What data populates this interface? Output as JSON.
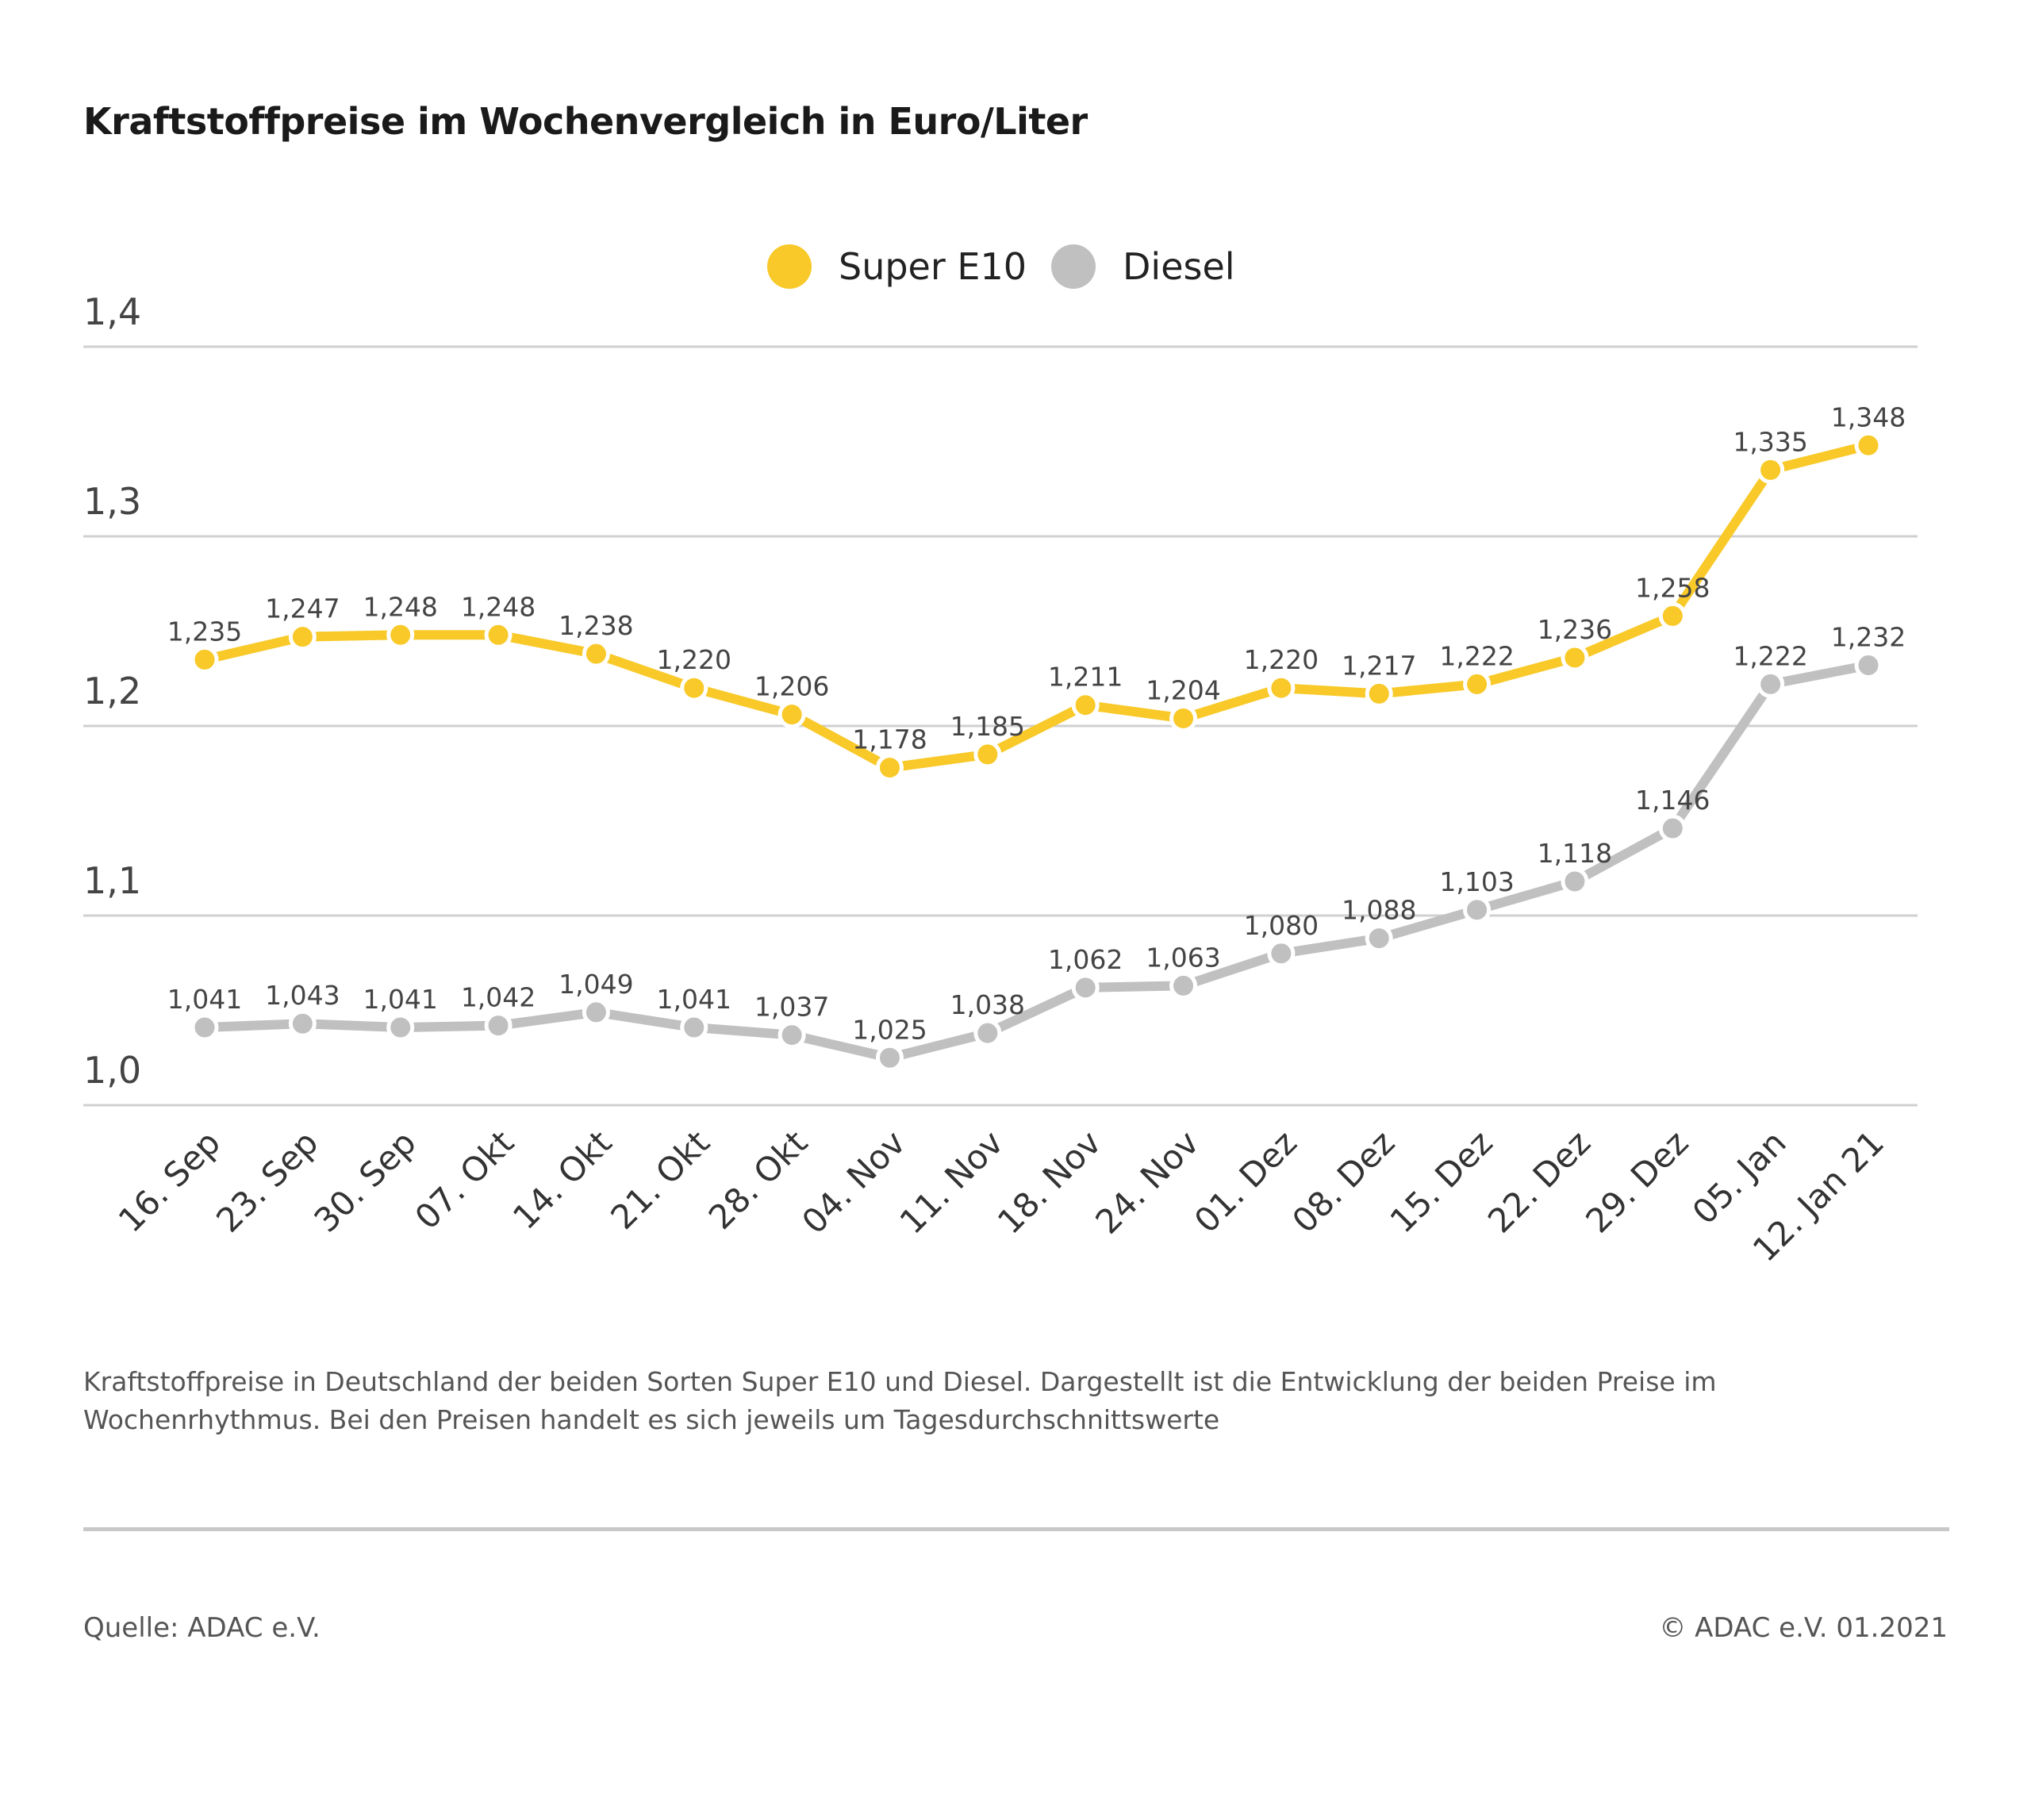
{
  "chart_data": {
    "type": "line",
    "title": "Kraftstoffpreise im Wochenvergleich in Euro/Liter",
    "categories": [
      "16. Sep",
      "23. Sep",
      "30. Sep",
      "07. Okt",
      "14. Okt",
      "21. Okt",
      "28. Okt",
      "04. Nov",
      "11. Nov",
      "18. Nov",
      "24. Nov",
      "01. Dez",
      "08. Dez",
      "15. Dez",
      "22. Dez",
      "29. Dez",
      "05. Jan",
      "12. Jan 21"
    ],
    "series": [
      {
        "name": "Super E10",
        "color": "#f8c928",
        "values": [
          1.235,
          1.247,
          1.248,
          1.248,
          1.238,
          1.22,
          1.206,
          1.178,
          1.185,
          1.211,
          1.204,
          1.22,
          1.217,
          1.222,
          1.236,
          1.258,
          1.335,
          1.348
        ],
        "labels": [
          "1,235",
          "1,247",
          "1,248",
          "1,248",
          "1,238",
          "1,220",
          "1,206",
          "1,178",
          "1,185",
          "1,211",
          "1,204",
          "1,220",
          "1,217",
          "1,222",
          "1,236",
          "1,258",
          "1,335",
          "1,348"
        ]
      },
      {
        "name": "Diesel",
        "color": "#c0c0c0",
        "values": [
          1.041,
          1.043,
          1.041,
          1.042,
          1.049,
          1.041,
          1.037,
          1.025,
          1.038,
          1.062,
          1.063,
          1.08,
          1.088,
          1.103,
          1.118,
          1.146,
          1.222,
          1.232
        ],
        "labels": [
          "1,041",
          "1,043",
          "1,041",
          "1,042",
          "1,049",
          "1,041",
          "1,037",
          "1,025",
          "1,038",
          "1,062",
          "1,063",
          "1,080",
          "1,088",
          "1,103",
          "1,118",
          "1,146",
          "1,222",
          "1,232"
        ]
      }
    ],
    "ylim": [
      1.0,
      1.4
    ],
    "yticks": [
      1.0,
      1.1,
      1.2,
      1.3,
      1.4
    ],
    "ytick_labels": [
      "1,0",
      "1,1",
      "1,2",
      "1,3",
      "1,4"
    ],
    "grid": true,
    "legend_position": "top-center",
    "xlabel": "",
    "ylabel": ""
  },
  "footnote": "Kraftstoffpreise in Deutschland der beiden Sorten Super E10 und Diesel. Dargestellt ist die Entwicklung der beiden Preise im Wochenrhythmus. Bei den Preisen handelt es sich jeweils um Tagesdurchschnittswerte",
  "source": "Quelle: ADAC e.V.",
  "copyright": "© ADAC e.V. 01.2021"
}
